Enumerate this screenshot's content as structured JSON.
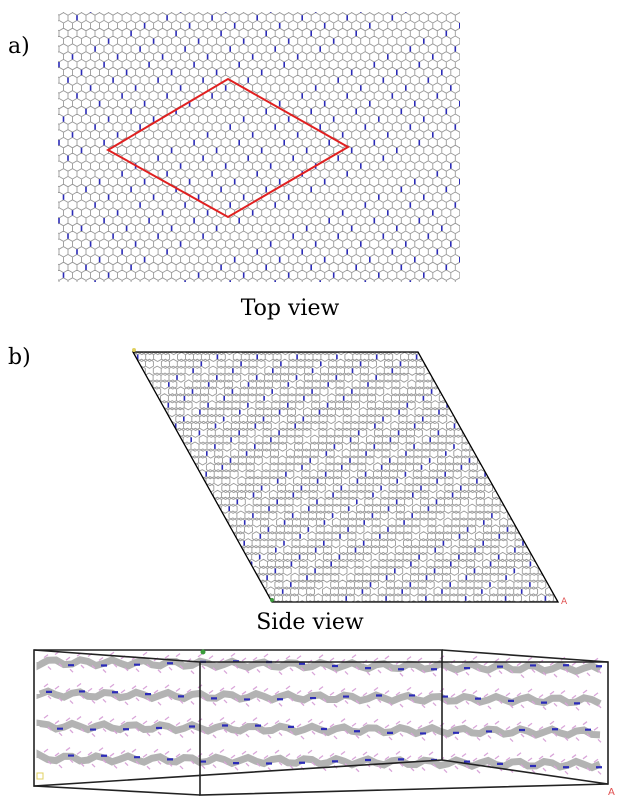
{
  "panel_a": {
    "label": "a)"
  },
  "panel_b": {
    "label": "b)",
    "top_view_title": "Top view",
    "side_view_title": "Side view"
  },
  "colors": {
    "bond_carbon": "#9a9a9a",
    "nitrogen": "#2b2bb8",
    "hydrogen": "#d9a6d9",
    "unit_cell_highlight": "#e02020",
    "cell_outline": "#000000",
    "axis_marker_a": "#e05050",
    "axis_marker_b": "#3a9a3a",
    "axis_marker_c": "#e0d060"
  },
  "icons": {
    "axis_a": "a-axis-marker",
    "axis_b": "b-axis-marker",
    "axis_c": "c-axis-marker"
  }
}
